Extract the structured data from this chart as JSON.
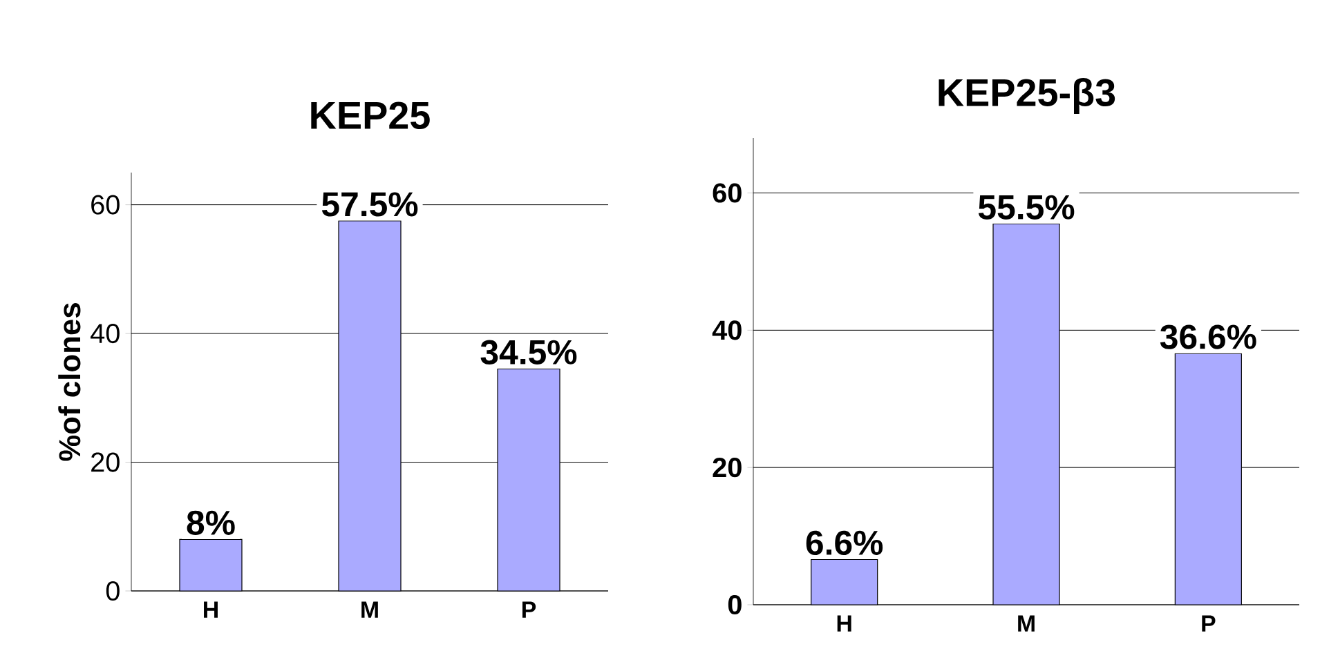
{
  "chart_data": [
    {
      "type": "bar",
      "title": "KEP25",
      "ylabel": "%of clones",
      "categories": [
        "H",
        "M",
        "P"
      ],
      "values": [
        8,
        57.5,
        34.5
      ],
      "value_labels": [
        "8%",
        "57.5%",
        "34.5%"
      ],
      "color": "#aaaaff",
      "ylim": [
        0,
        65
      ],
      "yticks": [
        0,
        20,
        40,
        60
      ],
      "grid": "y"
    },
    {
      "type": "bar",
      "title": "KEP25-β3",
      "categories": [
        "H",
        "M",
        "P"
      ],
      "values": [
        6.6,
        55.5,
        36.6
      ],
      "value_labels": [
        "6.6%",
        "55.5%",
        "36.6%"
      ],
      "color": "#aaaaff",
      "ylim": [
        0,
        68
      ],
      "yticks": [
        0,
        20,
        40,
        60
      ],
      "grid": "y"
    }
  ]
}
